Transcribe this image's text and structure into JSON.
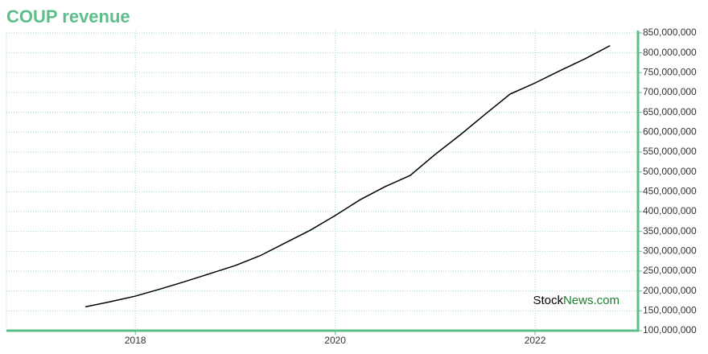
{
  "chart_data": {
    "type": "line",
    "title": "COUP revenue",
    "watermark": [
      "Stock",
      "News",
      ".com"
    ],
    "x": [
      2017.5,
      2017.75,
      2018.0,
      2018.25,
      2018.5,
      2018.75,
      2019.0,
      2019.25,
      2019.5,
      2019.75,
      2020.0,
      2020.25,
      2020.5,
      2020.75,
      2021.0,
      2021.25,
      2021.5,
      2021.75,
      2022.0,
      2022.25,
      2022.5,
      2022.75
    ],
    "series": [
      {
        "name": "COUP revenue",
        "color": "#000000",
        "values": [
          160000000,
          173000000,
          187000000,
          205000000,
          224000000,
          244000000,
          264000000,
          289000000,
          321000000,
          353000000,
          390000000,
          430000000,
          463000000,
          491000000,
          544000000,
          593000000,
          645000000,
          696000000,
          724000000,
          755000000,
          785000000,
          818000000
        ]
      }
    ],
    "xlim": [
      2016.71,
      2023.03
    ],
    "xticks": [
      2018,
      2020,
      2022
    ],
    "ylim": [
      100000000,
      856000000
    ],
    "yticks": [
      {
        "value": 100000000,
        "label": "100,000,000"
      },
      {
        "value": 150000000,
        "label": "150,000,000"
      },
      {
        "value": 200000000,
        "label": "200,000,000"
      },
      {
        "value": 250000000,
        "label": "250,000,000"
      },
      {
        "value": 300000000,
        "label": "300,000,000"
      },
      {
        "value": 350000000,
        "label": "350,000,000"
      },
      {
        "value": 400000000,
        "label": "400,000,000"
      },
      {
        "value": 450000000,
        "label": "450,000,000"
      },
      {
        "value": 500000000,
        "label": "500,000,000"
      },
      {
        "value": 550000000,
        "label": "550,000,000"
      },
      {
        "value": 600000000,
        "label": "600,000,000"
      },
      {
        "value": 650000000,
        "label": "650,000,000"
      },
      {
        "value": 700000000,
        "label": "700,000,000"
      },
      {
        "value": 750000000,
        "label": "750,000,000"
      },
      {
        "value": 800000000,
        "label": "800,000,000"
      },
      {
        "value": 850000000,
        "label": "850,000,000"
      }
    ],
    "grid": true,
    "axis_color": "#5cbf8a",
    "grid_color": "#9fd8c8"
  }
}
